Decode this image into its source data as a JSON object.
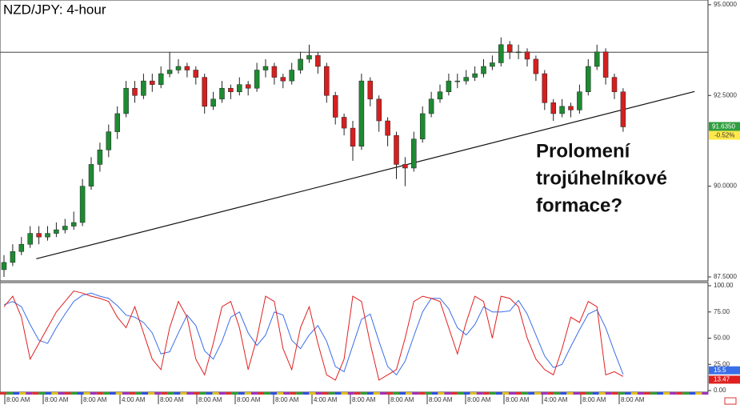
{
  "chart_data": {
    "type": "candlestick",
    "title": "NZD/JPY: 4-hour",
    "annotation": [
      "Prolomení",
      "trojúhelníkové",
      "formace?"
    ],
    "candles": {
      "open": [
        87.7,
        87.9,
        88.2,
        88.4,
        88.7,
        88.6,
        88.7,
        88.8,
        88.9,
        89.0,
        90.0,
        90.6,
        91.0,
        91.5,
        92.0,
        92.7,
        92.5,
        92.9,
        92.8,
        93.1,
        93.2,
        93.3,
        93.2,
        93.0,
        92.2,
        92.4,
        92.7,
        92.6,
        92.8,
        92.7,
        93.2,
        93.3,
        93.0,
        92.9,
        93.2,
        93.5,
        93.6,
        93.3,
        92.5,
        91.9,
        91.6,
        91.1,
        92.9,
        92.4,
        91.8,
        91.4,
        90.6,
        90.5,
        91.3,
        92.0,
        92.4,
        92.6,
        92.9,
        92.9,
        93.0,
        93.1,
        93.3,
        93.4,
        93.9,
        93.7,
        93.7,
        93.5,
        93.1,
        92.3,
        92.0,
        92.2,
        92.1,
        92.6,
        93.3,
        93.7,
        93.0,
        92.6
      ],
      "high": [
        88.1,
        88.4,
        88.6,
        88.9,
        88.9,
        88.9,
        89.0,
        89.1,
        89.3,
        90.2,
        90.8,
        91.2,
        91.7,
        92.2,
        92.9,
        92.9,
        93.1,
        93.1,
        93.3,
        93.7,
        93.5,
        93.4,
        93.3,
        93.1,
        92.6,
        92.9,
        92.8,
        93.0,
        92.9,
        93.4,
        93.5,
        93.4,
        93.1,
        93.4,
        93.7,
        93.9,
        93.7,
        93.4,
        92.6,
        92.0,
        91.8,
        93.1,
        93.0,
        92.5,
        91.9,
        91.5,
        90.8,
        91.5,
        92.2,
        92.6,
        92.8,
        93.1,
        93.1,
        93.2,
        93.3,
        93.5,
        93.6,
        94.1,
        94.0,
        93.9,
        93.8,
        93.6,
        93.2,
        92.4,
        92.4,
        92.3,
        92.8,
        93.5,
        93.9,
        93.8,
        93.1,
        92.7
      ],
      "low": [
        87.5,
        87.8,
        88.1,
        88.3,
        88.4,
        88.5,
        88.6,
        88.7,
        88.8,
        88.9,
        89.9,
        90.4,
        90.8,
        91.3,
        91.9,
        92.3,
        92.4,
        92.6,
        92.7,
        93.0,
        93.1,
        93.0,
        92.8,
        92.0,
        92.1,
        92.3,
        92.4,
        92.5,
        92.5,
        92.6,
        93.0,
        92.8,
        92.7,
        92.8,
        93.1,
        93.4,
        93.1,
        92.3,
        91.7,
        91.4,
        90.7,
        91.0,
        92.2,
        91.5,
        91.1,
        90.2,
        90.0,
        90.4,
        91.2,
        91.9,
        92.3,
        92.5,
        92.7,
        92.8,
        92.9,
        93.0,
        93.2,
        93.3,
        93.5,
        93.5,
        93.3,
        92.9,
        92.1,
        91.8,
        91.9,
        91.9,
        92.0,
        92.5,
        93.2,
        92.8,
        92.4,
        91.5
      ],
      "close": [
        87.9,
        88.2,
        88.4,
        88.7,
        88.6,
        88.7,
        88.8,
        88.9,
        89.0,
        90.0,
        90.6,
        91.0,
        91.5,
        92.0,
        92.7,
        92.5,
        92.9,
        92.8,
        93.1,
        93.2,
        93.3,
        93.2,
        93.0,
        92.2,
        92.4,
        92.7,
        92.6,
        92.8,
        92.7,
        93.2,
        93.3,
        93.0,
        92.9,
        93.2,
        93.5,
        93.6,
        93.3,
        92.5,
        91.9,
        91.6,
        91.1,
        92.9,
        92.4,
        91.8,
        91.4,
        90.6,
        90.5,
        91.3,
        92.0,
        92.4,
        92.6,
        92.9,
        92.9,
        93.0,
        93.1,
        93.3,
        93.4,
        93.9,
        93.7,
        93.7,
        93.5,
        93.1,
        92.3,
        92.0,
        92.2,
        92.1,
        92.6,
        93.3,
        93.7,
        93.0,
        92.6,
        91.635
      ]
    },
    "up_color": "#1e8a32",
    "down_color": "#d61f1f",
    "ylim": [
      87.39,
      95.13
    ],
    "yticks": [
      {
        "value": 95,
        "label": "95.0000"
      },
      {
        "value": 92.5,
        "label": "92.5000"
      },
      {
        "value": 90,
        "label": "90.0000"
      },
      {
        "value": 87.5,
        "label": "87.5000"
      }
    ],
    "resistance": 93.69,
    "trendline": {
      "start": {
        "index": 3.7,
        "value": 88.0
      },
      "end": {
        "index": 79.2,
        "value": 92.61
      }
    },
    "last_price": {
      "value": 91.635,
      "label": "91.6350"
    },
    "change": {
      "value": -0.52,
      "label": "-0.52%"
    },
    "xlabels": [
      "8:00 AM",
      "8:00 AM",
      "8:00 AM",
      "4:00 AM",
      "8:00 AM",
      "8:00 AM",
      "8:00 AM",
      "8:00 AM",
      "4:00 AM",
      "8:00 AM",
      "8:00 AM",
      "8:00 AM",
      "8:00 AM",
      "8:00 AM",
      "4:00 AM",
      "8:00 AM",
      "8:00 AM"
    ],
    "indicator": {
      "type": "line",
      "ylim": [
        0,
        100
      ],
      "yticks": [
        {
          "value": 100,
          "label": "100.00"
        },
        {
          "value": 75,
          "label": "75.00"
        },
        {
          "value": 50,
          "label": "50.00"
        },
        {
          "value": 25,
          "label": "25.00"
        },
        {
          "value": 0,
          "label": "0.00"
        }
      ],
      "series": [
        {
          "color": "#e02020",
          "values": [
            80,
            90,
            70,
            30,
            45,
            60,
            75,
            85,
            95,
            93,
            90,
            88,
            85,
            70,
            60,
            80,
            55,
            30,
            20,
            60,
            85,
            70,
            30,
            15,
            45,
            80,
            85,
            60,
            20,
            50,
            90,
            85,
            40,
            20,
            60,
            80,
            45,
            15,
            10,
            30,
            90,
            85,
            45,
            10,
            15,
            20,
            50,
            85,
            90,
            88,
            85,
            60,
            35,
            65,
            90,
            85,
            50,
            90,
            88,
            80,
            50,
            30,
            20,
            15,
            40,
            70,
            65,
            85,
            80,
            15,
            18,
            13.47
          ]
        },
        {
          "color": "#3a6ee8",
          "values": [
            82,
            85,
            80,
            63,
            48,
            45,
            60,
            73,
            85,
            91,
            93,
            90,
            88,
            81,
            72,
            70,
            65,
            55,
            35,
            37,
            55,
            72,
            62,
            38,
            30,
            47,
            70,
            75,
            55,
            43,
            53,
            75,
            72,
            48,
            40,
            53,
            62,
            47,
            23,
            18,
            43,
            68,
            73,
            47,
            23,
            15,
            28,
            52,
            75,
            88,
            88,
            78,
            60,
            53,
            63,
            80,
            75,
            75,
            76,
            86,
            73,
            53,
            33,
            22,
            25,
            42,
            58,
            73,
            77,
            60,
            37,
            15.5
          ]
        }
      ]
    }
  }
}
